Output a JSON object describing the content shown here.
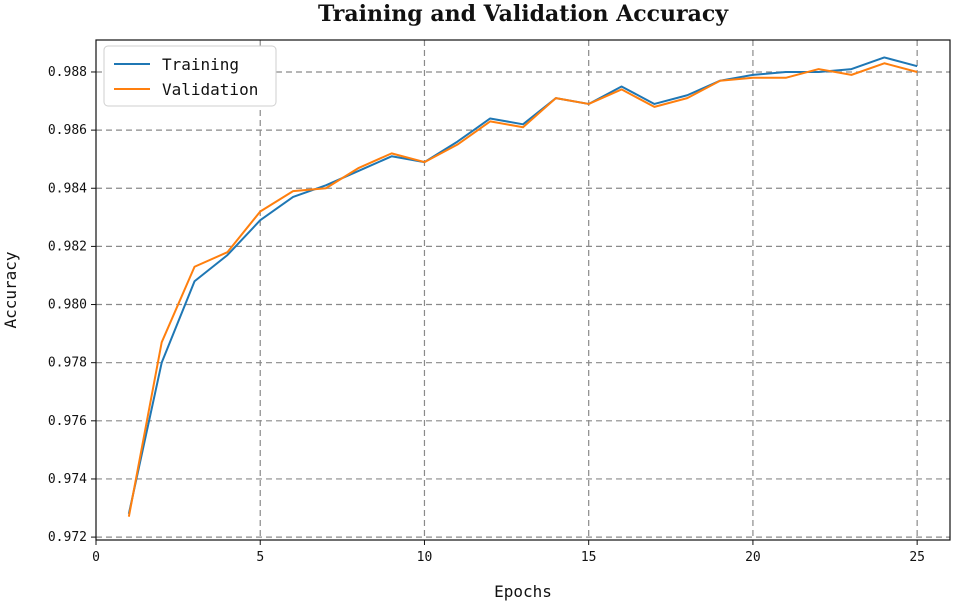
{
  "chart_data": {
    "type": "line",
    "title": "Training and Validation Accuracy",
    "xlabel": "Epochs",
    "ylabel": "Accuracy",
    "xlim": [
      0,
      26
    ],
    "ylim": [
      0.9719,
      0.9891
    ],
    "xticks": [
      0,
      5,
      10,
      15,
      20,
      25
    ],
    "xtick_labels": [
      "0",
      "5",
      "10",
      "15",
      "20",
      "25"
    ],
    "yticks": [
      0.972,
      0.974,
      0.976,
      0.978,
      0.98,
      0.982,
      0.984,
      0.986,
      0.988
    ],
    "ytick_labels": [
      "0.972",
      "0.974",
      "0.976",
      "0.978",
      "0.980",
      "0.982",
      "0.984",
      "0.986",
      "0.988"
    ],
    "grid": true,
    "legend_position": "top-left",
    "x": [
      1,
      2,
      3,
      4,
      5,
      6,
      7,
      8,
      9,
      10,
      11,
      12,
      13,
      14,
      15,
      16,
      17,
      18,
      19,
      20,
      21,
      22,
      23,
      24,
      25
    ],
    "series": [
      {
        "name": "Training",
        "color": "#1f77b4",
        "values": [
          0.9728,
          0.978,
          0.9808,
          0.9817,
          0.9829,
          0.9837,
          0.9841,
          0.9846,
          0.9851,
          0.9849,
          0.9856,
          0.9864,
          0.9862,
          0.9871,
          0.9869,
          0.9875,
          0.9869,
          0.9872,
          0.9877,
          0.9879,
          0.988,
          0.988,
          0.9881,
          0.9885,
          0.9882
        ]
      },
      {
        "name": "Validation",
        "color": "#ff7f0e",
        "values": [
          0.9727,
          0.9787,
          0.9813,
          0.9818,
          0.9832,
          0.9839,
          0.984,
          0.9847,
          0.9852,
          0.9849,
          0.9855,
          0.9863,
          0.9861,
          0.9871,
          0.9869,
          0.9874,
          0.9868,
          0.9871,
          0.9877,
          0.9878,
          0.9878,
          0.9881,
          0.9879,
          0.9883,
          0.988
        ]
      }
    ]
  }
}
